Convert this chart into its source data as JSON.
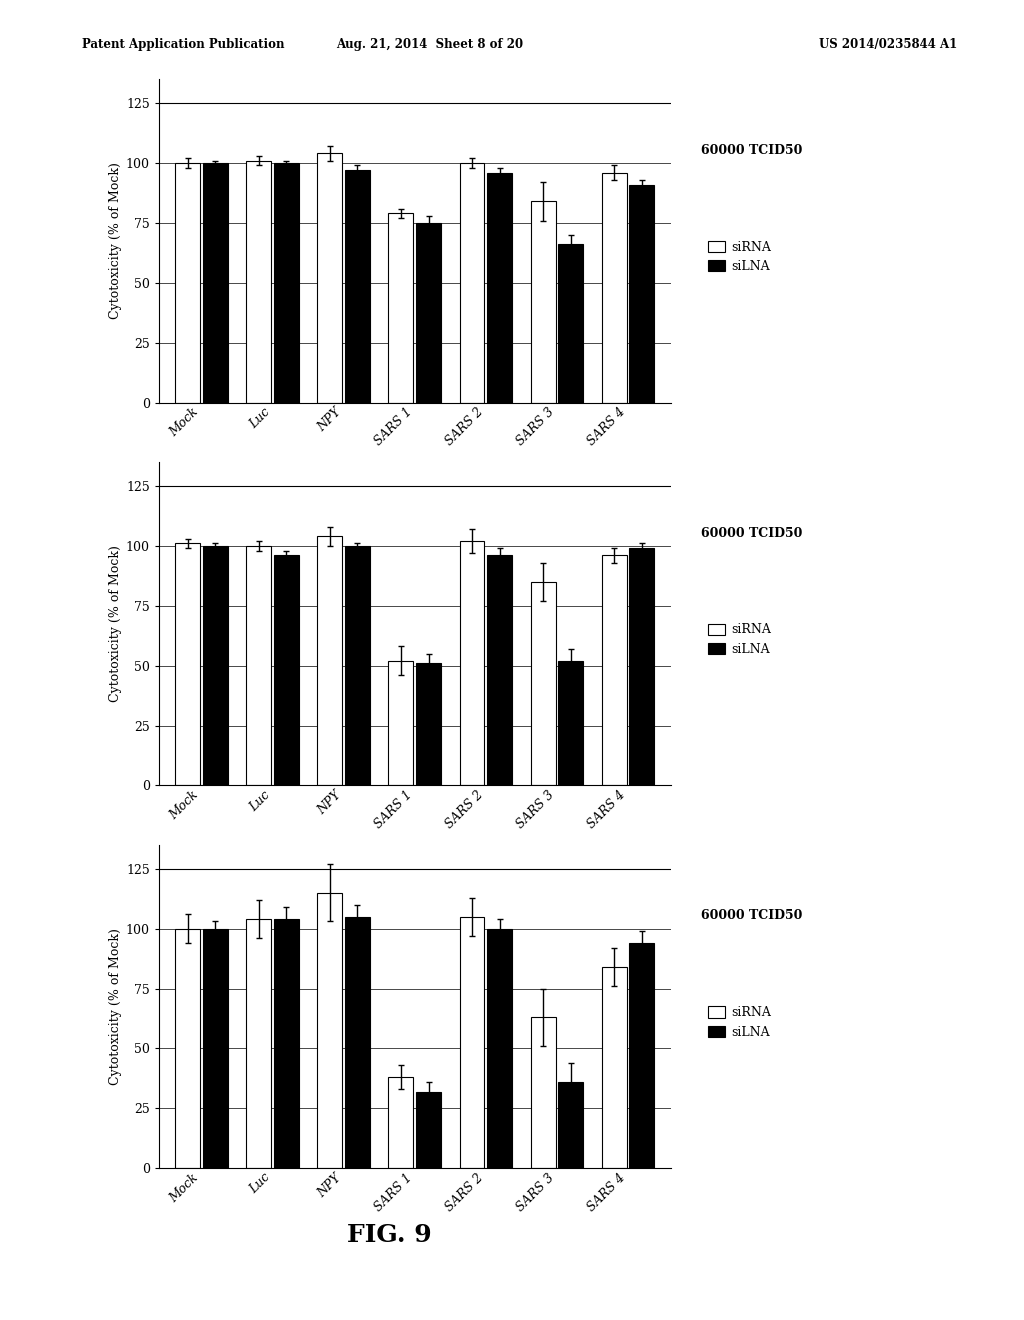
{
  "categories": [
    "Mock",
    "Luc",
    "NPY",
    "SARS 1",
    "SARS 2",
    "SARS 3",
    "SARS 4"
  ],
  "charts": [
    {
      "siRNA": [
        100,
        101,
        104,
        79,
        100,
        84,
        96
      ],
      "siLNA": [
        100,
        100,
        97,
        75,
        96,
        66,
        91
      ],
      "siRNA_err": [
        2,
        2,
        3,
        2,
        2,
        8,
        3
      ],
      "siLNA_err": [
        1,
        1,
        2,
        3,
        2,
        4,
        2
      ],
      "label": "60000 TCID50"
    },
    {
      "siRNA": [
        101,
        100,
        104,
        52,
        102,
        85,
        96
      ],
      "siLNA": [
        100,
        96,
        100,
        51,
        96,
        52,
        99
      ],
      "siRNA_err": [
        2,
        2,
        4,
        6,
        5,
        8,
        3
      ],
      "siLNA_err": [
        1,
        2,
        1,
        4,
        3,
        5,
        2
      ],
      "label": "60000 TCID50"
    },
    {
      "siRNA": [
        100,
        104,
        115,
        38,
        105,
        63,
        84
      ],
      "siLNA": [
        100,
        104,
        105,
        32,
        100,
        36,
        94
      ],
      "siRNA_err": [
        6,
        8,
        12,
        5,
        8,
        12,
        8
      ],
      "siLNA_err": [
        3,
        5,
        5,
        4,
        4,
        8,
        5
      ],
      "label": "60000 TCID50"
    }
  ],
  "ylabel": "Cytotoxicity (% of Mock)",
  "ylim": [
    0,
    135
  ],
  "yticks": [
    0,
    25,
    50,
    75,
    100,
    125
  ],
  "background_color": "#ffffff",
  "bar_white": "#ffffff",
  "bar_black": "#000000",
  "figure_caption": "FIG. 9",
  "header_left": "Patent Application Publication",
  "header_mid": "Aug. 21, 2014  Sheet 8 of 20",
  "header_right": "US 2014/0235844 A1"
}
